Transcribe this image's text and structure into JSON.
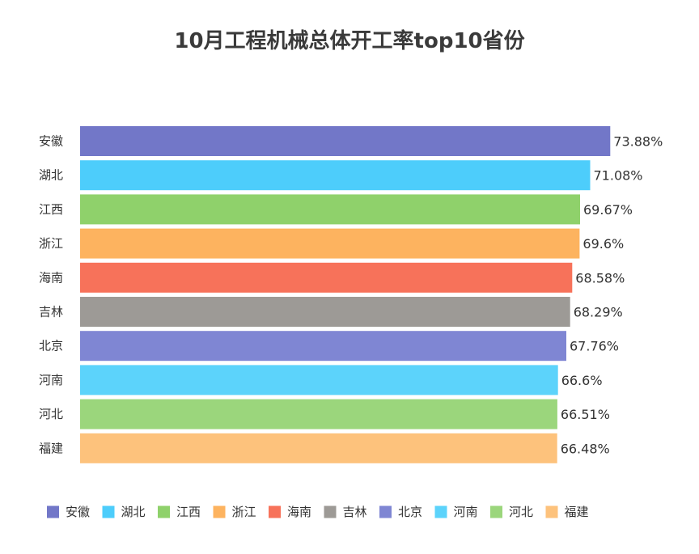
{
  "chart_data": {
    "type": "bar",
    "orientation": "horizontal",
    "title": "10月工程机械总体开工率top10省份",
    "categories": [
      "安徽",
      "湖北",
      "江西",
      "浙江",
      "海南",
      "吉林",
      "北京",
      "河南",
      "河北",
      "福建"
    ],
    "values": [
      73.88,
      71.08,
      69.67,
      69.6,
      68.58,
      68.29,
      67.76,
      66.6,
      66.51,
      66.48
    ],
    "value_labels": [
      "73.88%",
      "71.08%",
      "69.67%",
      "69.6%",
      "68.58%",
      "68.29%",
      "67.76%",
      "66.6%",
      "66.51%",
      "66.48%"
    ],
    "colors": [
      "#7277c8",
      "#4dcdfb",
      "#8fd16b",
      "#fdb35f",
      "#f7725a",
      "#9d9a96",
      "#7f86d3",
      "#5cd3fb",
      "#9bd67c",
      "#fdc27c"
    ],
    "legend_position": "bottom",
    "grid": false
  }
}
